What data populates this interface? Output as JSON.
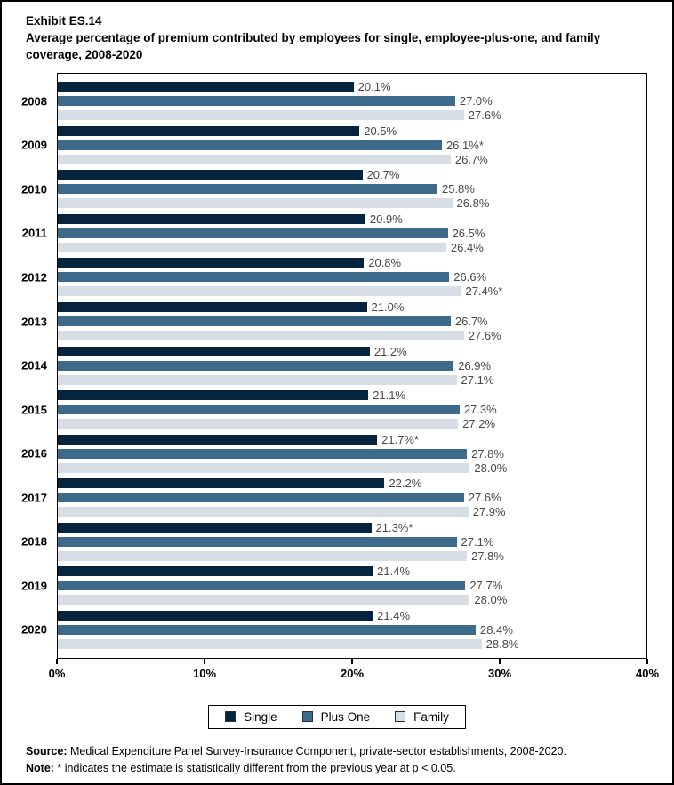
{
  "title": {
    "exhibit": "Exhibit ES.14",
    "text": "Average percentage of premium contributed by employees for single, employee-plus-one, and family coverage, 2008-2020"
  },
  "chart_data": {
    "type": "bar",
    "orientation": "horizontal",
    "title": "Average percentage of premium contributed by employees for single, employee-plus-one, and family coverage, 2008-2020",
    "categories": [
      "2008",
      "2009",
      "2010",
      "2011",
      "2012",
      "2013",
      "2014",
      "2015",
      "2016",
      "2017",
      "2018",
      "2019",
      "2020"
    ],
    "series": [
      {
        "name": "Single",
        "color": "#06243D",
        "values": [
          20.1,
          20.5,
          20.7,
          20.9,
          20.8,
          21.0,
          21.2,
          21.1,
          21.7,
          22.2,
          21.3,
          21.4,
          21.4
        ],
        "labels": [
          "20.1%",
          "20.5%",
          "20.7%",
          "20.9%",
          "20.8%",
          "21.0%",
          "21.2%",
          "21.1%",
          "21.7%*",
          "22.2%",
          "21.3%*",
          "21.4%",
          "21.4%"
        ]
      },
      {
        "name": "Plus One",
        "color": "#3E6A8C",
        "values": [
          27.0,
          26.1,
          25.8,
          26.5,
          26.6,
          26.7,
          26.9,
          27.3,
          27.8,
          27.6,
          27.1,
          27.7,
          28.4
        ],
        "labels": [
          "27.0%",
          "26.1%*",
          "25.8%",
          "26.5%",
          "26.6%",
          "26.7%",
          "26.9%",
          "27.3%",
          "27.8%",
          "27.6%",
          "27.1%",
          "27.7%",
          "28.4%"
        ]
      },
      {
        "name": "Family",
        "color": "#D7DEE5",
        "values": [
          27.6,
          26.7,
          26.8,
          26.4,
          27.4,
          27.6,
          27.1,
          27.2,
          28.0,
          27.9,
          27.8,
          28.0,
          28.8
        ],
        "labels": [
          "27.6%",
          "26.7%",
          "26.8%",
          "26.4%",
          "27.4%*",
          "27.6%",
          "27.1%",
          "27.2%",
          "28.0%",
          "27.9%",
          "27.8%",
          "28.0%",
          "28.8%"
        ]
      }
    ],
    "xlim": [
      0,
      40
    ],
    "x_ticks": [
      {
        "value": 0,
        "label": "0%"
      },
      {
        "value": 10,
        "label": "10%"
      },
      {
        "value": 20,
        "label": "20%"
      },
      {
        "value": 30,
        "label": "30%"
      },
      {
        "value": 40,
        "label": "40%"
      }
    ],
    "grid": false,
    "legend_position": "bottom",
    "value_label_color": "#474747"
  },
  "legend": {
    "items": [
      {
        "label": "Single",
        "color": "#06243D"
      },
      {
        "label": "Plus One",
        "color": "#3E6A8C"
      },
      {
        "label": "Family",
        "color": "#D7DEE5"
      }
    ]
  },
  "footer": {
    "source_label": "Source:",
    "source_text": " Medical Expenditure Panel Survey-Insurance Component, private-sector establishments, 2008-2020.",
    "note_label": "Note:",
    "note_text": " * indicates the estimate is statistically different from the previous year at p < 0.05."
  }
}
